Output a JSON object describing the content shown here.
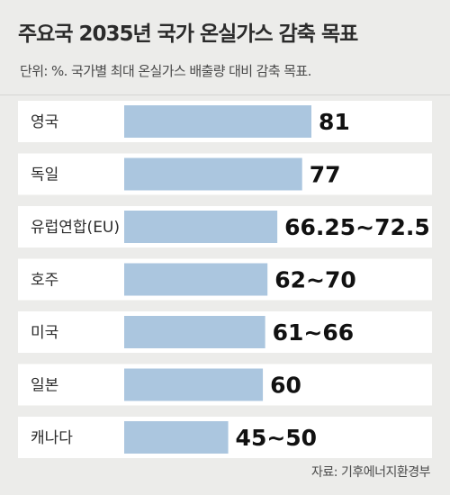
{
  "header": {
    "title": "주요국 2035년 국가 온실가스 감축 목표",
    "subtitle": "단위: %. 국가별 최대 온실가스 배출량 대비 감축 목표."
  },
  "source": "자료: 기후에너지환경부",
  "colors": {
    "bar": "#abc6df",
    "band": "#ffffff",
    "label": "#2b2b2b",
    "value": "#111111",
    "background": "#ececea"
  },
  "chart_data": {
    "type": "bar",
    "orientation": "horizontal",
    "title": "주요국 2035년 국가 온실가스 감축 목표",
    "subtitle": "단위: %. 국가별 최대 온실가스 배출량 대비 감축 목표.",
    "categories": [
      "영국",
      "독일",
      "유럽연합(EU)",
      "호주",
      "미국",
      "일본",
      "캐나다"
    ],
    "values": [
      81,
      77,
      66.25,
      62,
      61,
      60,
      45
    ],
    "value_labels": [
      "81",
      "77",
      "66.25~72.5",
      "62~70",
      "61~66",
      "60",
      "45~50"
    ],
    "xlim": [
      0,
      81
    ],
    "grid": false,
    "legend": "none"
  }
}
